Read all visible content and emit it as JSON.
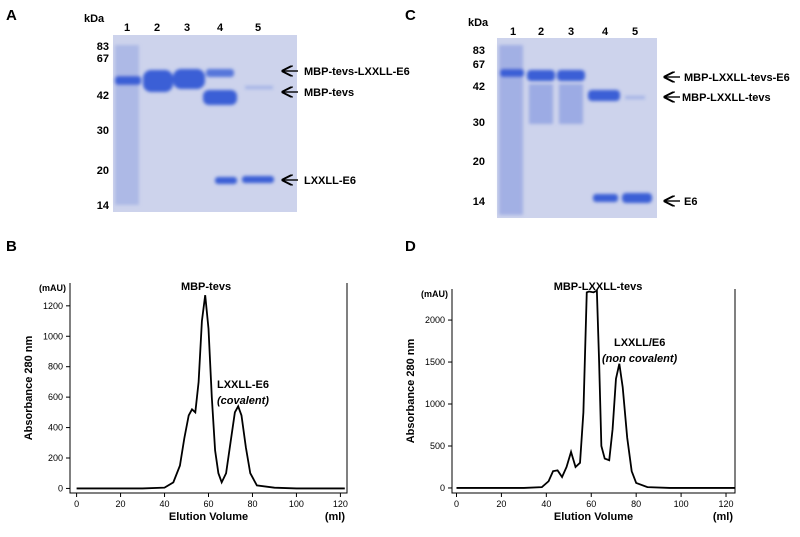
{
  "gels": [
    {
      "panel": "A",
      "unit": "kDa",
      "markers": [
        83,
        67,
        42,
        30,
        20,
        14
      ],
      "lanes": [
        1,
        2,
        3,
        4,
        5
      ],
      "bands": [
        "MBP-tevs-LXXLL-E6",
        "MBP-tevs",
        "LXXLL-E6"
      ]
    },
    {
      "panel": "C",
      "unit": "kDa",
      "markers": [
        83,
        67,
        42,
        30,
        20,
        14
      ],
      "lanes": [
        1,
        2,
        3,
        4,
        5
      ],
      "bands": [
        "MBP-LXXLL-tevs-E6",
        "MBP-LXXLL-tevs",
        "E6"
      ]
    }
  ],
  "chart_data": [
    {
      "type": "line",
      "panel_label": "B",
      "xlabel": "Elution Volume",
      "xunit": "(ml)",
      "yunit": "(mAU)",
      "ylabel": "Absorbance 280 nm",
      "annotations": [
        "MBP-tevs",
        "LXXLL-E6",
        "(covalent)"
      ],
      "x": [
        0,
        10,
        20,
        30,
        40,
        44,
        47,
        49,
        51,
        52.5,
        54,
        55.5,
        57,
        58.5,
        60,
        61.5,
        63,
        64.5,
        66,
        68,
        70,
        72,
        73.5,
        75,
        77,
        79,
        82,
        90,
        100,
        110,
        122
      ],
      "series": [
        {
          "color": "#000000",
          "values": [
            0,
            0,
            0,
            0,
            5,
            40,
            150,
            330,
            480,
            520,
            500,
            700,
            1100,
            1270,
            1050,
            600,
            250,
            100,
            40,
            100,
            300,
            500,
            540,
            480,
            270,
            100,
            20,
            5,
            0,
            0,
            0
          ]
        }
      ],
      "xlim": [
        -3,
        123
      ],
      "ylim": [
        -30,
        1350
      ],
      "xticks": [
        0,
        20,
        40,
        60,
        80,
        100,
        120
      ],
      "yticks": [
        0,
        200,
        400,
        600,
        800,
        1000,
        1200
      ]
    },
    {
      "type": "line",
      "panel_label": "D",
      "xlabel": "Elution Volume",
      "xunit": "(ml)",
      "yunit": "(mAU)",
      "ylabel": "Absorbance 280 nm",
      "annotations": [
        "MBP-LXXLL-tevs",
        "LXXLL/E6",
        "(non covalent)"
      ],
      "x": [
        0,
        10,
        20,
        30,
        38,
        41,
        43,
        45,
        47,
        49,
        51,
        53,
        55,
        56.5,
        58,
        59,
        61,
        62.5,
        63.5,
        64.5,
        66,
        68,
        69.5,
        71,
        72.5,
        74,
        76,
        78,
        80,
        85,
        95,
        110,
        124
      ],
      "series": [
        {
          "color": "#000000",
          "values": [
            0,
            0,
            0,
            0,
            10,
            80,
            200,
            210,
            130,
            250,
            430,
            250,
            300,
            900,
            2330,
            2340,
            2330,
            2350,
            1500,
            500,
            350,
            330,
            700,
            1300,
            1480,
            1200,
            600,
            200,
            60,
            10,
            0,
            0,
            0
          ]
        }
      ],
      "xlim": [
        -2,
        124
      ],
      "ylim": [
        -60,
        2370
      ],
      "xticks": [
        0,
        20,
        40,
        60,
        80,
        100,
        120
      ],
      "yticks": [
        0,
        500,
        1000,
        1500,
        2000
      ]
    }
  ]
}
